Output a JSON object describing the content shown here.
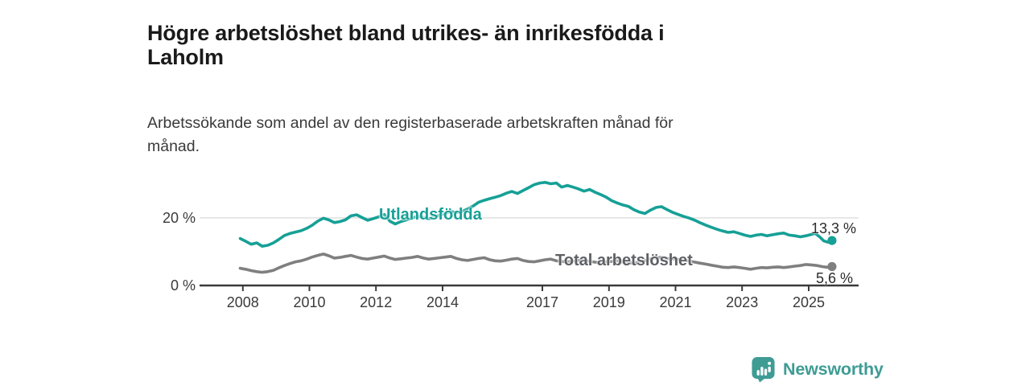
{
  "header": {
    "title_line1": "Högre arbetslöshet bland utrikes- än inrikesfödda i",
    "title_line2": "Laholm",
    "subtitle_line1": "Arbetssökande som andel av den registerbaserade arbetskraften månad för",
    "subtitle_line2": "månad."
  },
  "branding": {
    "name": "Newsworthy",
    "icon": "bar-chart-speech-bubble",
    "color": "#3e9c94"
  },
  "chart_data": {
    "type": "line",
    "title": "Högre arbetslöshet bland utrikes- än inrikesfödda i Laholm",
    "subtitle": "Arbetssökande som andel av den registerbaserade arbetskraften månad för månad.",
    "unit": "percent of registered labour force",
    "xlim": [
      2006.7,
      2026.5
    ],
    "ylim": [
      0,
      33.3
    ],
    "grid": "horizontal gridline at 20 % only",
    "legend_position": "inline labels on lines, end-value labels at right",
    "colors": {
      "axis": "#3a3a3a",
      "grid": "#dddddd"
    },
    "x_ticks": [
      {
        "value": 2008,
        "label": "2008"
      },
      {
        "value": 2010,
        "label": "2010"
      },
      {
        "value": 2012,
        "label": "2012"
      },
      {
        "value": 2014,
        "label": "2014"
      },
      {
        "value": 2017,
        "label": "2017"
      },
      {
        "value": 2019,
        "label": "2019"
      },
      {
        "value": 2021,
        "label": "2021"
      },
      {
        "value": 2023,
        "label": "2023"
      },
      {
        "value": 2025,
        "label": "2025"
      }
    ],
    "y_ticks": [
      {
        "value": 0,
        "label": "0 %"
      },
      {
        "value": 20,
        "label": "20 %"
      }
    ],
    "series": [
      {
        "name": "Utlandsfödda",
        "color": "#16a096",
        "end_label": "13,3 %",
        "end_value": 13.3,
        "points": [
          [
            2007.92,
            13.9
          ],
          [
            2008.08,
            13.1
          ],
          [
            2008.25,
            12.2
          ],
          [
            2008.42,
            12.6
          ],
          [
            2008.58,
            11.6
          ],
          [
            2008.75,
            11.9
          ],
          [
            2008.92,
            12.6
          ],
          [
            2009.08,
            13.6
          ],
          [
            2009.25,
            14.8
          ],
          [
            2009.42,
            15.4
          ],
          [
            2009.58,
            15.8
          ],
          [
            2009.75,
            16.2
          ],
          [
            2009.92,
            16.9
          ],
          [
            2010.08,
            17.8
          ],
          [
            2010.25,
            19.0
          ],
          [
            2010.42,
            19.9
          ],
          [
            2010.58,
            19.4
          ],
          [
            2010.75,
            18.6
          ],
          [
            2010.92,
            18.9
          ],
          [
            2011.08,
            19.4
          ],
          [
            2011.25,
            20.6
          ],
          [
            2011.42,
            20.9
          ],
          [
            2011.58,
            20.1
          ],
          [
            2011.75,
            19.3
          ],
          [
            2011.92,
            19.8
          ],
          [
            2012.08,
            20.3
          ],
          [
            2012.25,
            21.0
          ],
          [
            2012.42,
            19.0
          ],
          [
            2012.58,
            18.2
          ],
          [
            2012.75,
            18.9
          ],
          [
            2012.92,
            19.4
          ],
          [
            2013.08,
            19.9
          ],
          [
            2013.25,
            20.5
          ],
          [
            2013.42,
            20.1
          ],
          [
            2013.58,
            19.7
          ],
          [
            2013.75,
            20.3
          ],
          [
            2013.92,
            20.8
          ],
          [
            2014.08,
            21.3
          ],
          [
            2014.25,
            21.9
          ],
          [
            2014.42,
            21.5
          ],
          [
            2014.58,
            21.9
          ],
          [
            2014.75,
            22.6
          ],
          [
            2014.92,
            23.5
          ],
          [
            2015.08,
            24.6
          ],
          [
            2015.25,
            25.2
          ],
          [
            2015.42,
            25.7
          ],
          [
            2015.58,
            26.1
          ],
          [
            2015.75,
            26.6
          ],
          [
            2015.92,
            27.3
          ],
          [
            2016.08,
            27.8
          ],
          [
            2016.25,
            27.2
          ],
          [
            2016.42,
            28.1
          ],
          [
            2016.58,
            28.9
          ],
          [
            2016.75,
            29.8
          ],
          [
            2016.92,
            30.3
          ],
          [
            2017.08,
            30.5
          ],
          [
            2017.25,
            30.1
          ],
          [
            2017.42,
            30.3
          ],
          [
            2017.58,
            29.1
          ],
          [
            2017.75,
            29.6
          ],
          [
            2017.92,
            29.1
          ],
          [
            2018.08,
            28.6
          ],
          [
            2018.25,
            27.9
          ],
          [
            2018.42,
            28.4
          ],
          [
            2018.58,
            27.6
          ],
          [
            2018.75,
            26.9
          ],
          [
            2018.92,
            26.1
          ],
          [
            2019.08,
            25.1
          ],
          [
            2019.25,
            24.4
          ],
          [
            2019.42,
            23.8
          ],
          [
            2019.58,
            23.4
          ],
          [
            2019.75,
            22.4
          ],
          [
            2019.92,
            21.7
          ],
          [
            2020.08,
            21.3
          ],
          [
            2020.25,
            22.3
          ],
          [
            2020.42,
            23.1
          ],
          [
            2020.58,
            23.3
          ],
          [
            2020.75,
            22.4
          ],
          [
            2020.92,
            21.6
          ],
          [
            2021.08,
            21.0
          ],
          [
            2021.25,
            20.4
          ],
          [
            2021.42,
            19.9
          ],
          [
            2021.58,
            19.3
          ],
          [
            2021.75,
            18.5
          ],
          [
            2021.92,
            17.8
          ],
          [
            2022.08,
            17.2
          ],
          [
            2022.25,
            16.6
          ],
          [
            2022.42,
            16.1
          ],
          [
            2022.58,
            15.7
          ],
          [
            2022.75,
            15.9
          ],
          [
            2022.92,
            15.4
          ],
          [
            2023.08,
            14.9
          ],
          [
            2023.25,
            14.5
          ],
          [
            2023.42,
            14.9
          ],
          [
            2023.58,
            15.1
          ],
          [
            2023.75,
            14.7
          ],
          [
            2023.92,
            15.0
          ],
          [
            2024.08,
            15.3
          ],
          [
            2024.25,
            15.5
          ],
          [
            2024.42,
            14.9
          ],
          [
            2024.58,
            14.7
          ],
          [
            2024.75,
            14.4
          ],
          [
            2024.92,
            14.7
          ],
          [
            2025.08,
            15.1
          ],
          [
            2025.2,
            15.4
          ],
          [
            2025.33,
            14.4
          ],
          [
            2025.45,
            13.2
          ],
          [
            2025.58,
            12.8
          ],
          [
            2025.7,
            13.3
          ]
        ]
      },
      {
        "name": "Total arbetslöshet",
        "color": "#7f7f7f",
        "end_label": "5,6 %",
        "end_value": 5.6,
        "points": [
          [
            2007.92,
            5.1
          ],
          [
            2008.08,
            4.8
          ],
          [
            2008.25,
            4.4
          ],
          [
            2008.42,
            4.1
          ],
          [
            2008.58,
            3.9
          ],
          [
            2008.75,
            4.1
          ],
          [
            2008.92,
            4.5
          ],
          [
            2009.08,
            5.2
          ],
          [
            2009.25,
            5.9
          ],
          [
            2009.42,
            6.5
          ],
          [
            2009.58,
            7.0
          ],
          [
            2009.75,
            7.3
          ],
          [
            2009.92,
            7.8
          ],
          [
            2010.08,
            8.4
          ],
          [
            2010.25,
            8.9
          ],
          [
            2010.42,
            9.3
          ],
          [
            2010.58,
            8.8
          ],
          [
            2010.75,
            8.1
          ],
          [
            2010.92,
            8.3
          ],
          [
            2011.08,
            8.6
          ],
          [
            2011.25,
            8.9
          ],
          [
            2011.42,
            8.4
          ],
          [
            2011.58,
            8.0
          ],
          [
            2011.75,
            7.8
          ],
          [
            2011.92,
            8.1
          ],
          [
            2012.08,
            8.4
          ],
          [
            2012.25,
            8.7
          ],
          [
            2012.42,
            8.1
          ],
          [
            2012.58,
            7.7
          ],
          [
            2012.75,
            7.9
          ],
          [
            2012.92,
            8.1
          ],
          [
            2013.08,
            8.3
          ],
          [
            2013.25,
            8.6
          ],
          [
            2013.42,
            8.1
          ],
          [
            2013.58,
            7.8
          ],
          [
            2013.75,
            8.0
          ],
          [
            2013.92,
            8.2
          ],
          [
            2014.08,
            8.4
          ],
          [
            2014.25,
            8.6
          ],
          [
            2014.42,
            8.0
          ],
          [
            2014.58,
            7.6
          ],
          [
            2014.75,
            7.4
          ],
          [
            2014.92,
            7.7
          ],
          [
            2015.08,
            8.0
          ],
          [
            2015.25,
            8.2
          ],
          [
            2015.42,
            7.6
          ],
          [
            2015.58,
            7.3
          ],
          [
            2015.75,
            7.2
          ],
          [
            2015.92,
            7.5
          ],
          [
            2016.08,
            7.8
          ],
          [
            2016.25,
            8.0
          ],
          [
            2016.42,
            7.4
          ],
          [
            2016.58,
            7.1
          ],
          [
            2016.75,
            7.0
          ],
          [
            2016.92,
            7.3
          ],
          [
            2017.08,
            7.6
          ],
          [
            2017.25,
            7.8
          ],
          [
            2017.42,
            7.3
          ],
          [
            2017.58,
            7.1
          ],
          [
            2017.75,
            7.0
          ],
          [
            2017.92,
            7.2
          ],
          [
            2018.08,
            7.4
          ],
          [
            2018.25,
            7.6
          ],
          [
            2018.42,
            7.1
          ],
          [
            2018.58,
            6.9
          ],
          [
            2018.75,
            6.8
          ],
          [
            2018.92,
            7.0
          ],
          [
            2019.08,
            7.1
          ],
          [
            2019.25,
            7.3
          ],
          [
            2019.42,
            6.9
          ],
          [
            2019.58,
            6.7
          ],
          [
            2019.75,
            6.6
          ],
          [
            2019.92,
            6.9
          ],
          [
            2020.08,
            7.3
          ],
          [
            2020.25,
            7.9
          ],
          [
            2020.42,
            8.2
          ],
          [
            2020.58,
            8.3
          ],
          [
            2020.75,
            8.0
          ],
          [
            2020.92,
            7.8
          ],
          [
            2021.08,
            7.7
          ],
          [
            2021.25,
            7.5
          ],
          [
            2021.42,
            7.2
          ],
          [
            2021.58,
            6.9
          ],
          [
            2021.75,
            6.6
          ],
          [
            2021.92,
            6.3
          ],
          [
            2022.08,
            6.0
          ],
          [
            2022.25,
            5.7
          ],
          [
            2022.42,
            5.4
          ],
          [
            2022.58,
            5.3
          ],
          [
            2022.75,
            5.5
          ],
          [
            2022.92,
            5.3
          ],
          [
            2023.08,
            5.1
          ],
          [
            2023.25,
            4.8
          ],
          [
            2023.42,
            5.1
          ],
          [
            2023.58,
            5.3
          ],
          [
            2023.75,
            5.2
          ],
          [
            2023.92,
            5.4
          ],
          [
            2024.08,
            5.5
          ],
          [
            2024.25,
            5.3
          ],
          [
            2024.42,
            5.5
          ],
          [
            2024.58,
            5.7
          ],
          [
            2024.75,
            5.9
          ],
          [
            2024.92,
            6.2
          ],
          [
            2025.08,
            6.1
          ],
          [
            2025.25,
            5.9
          ],
          [
            2025.4,
            5.6
          ],
          [
            2025.55,
            5.4
          ],
          [
            2025.7,
            5.6
          ]
        ]
      }
    ]
  }
}
